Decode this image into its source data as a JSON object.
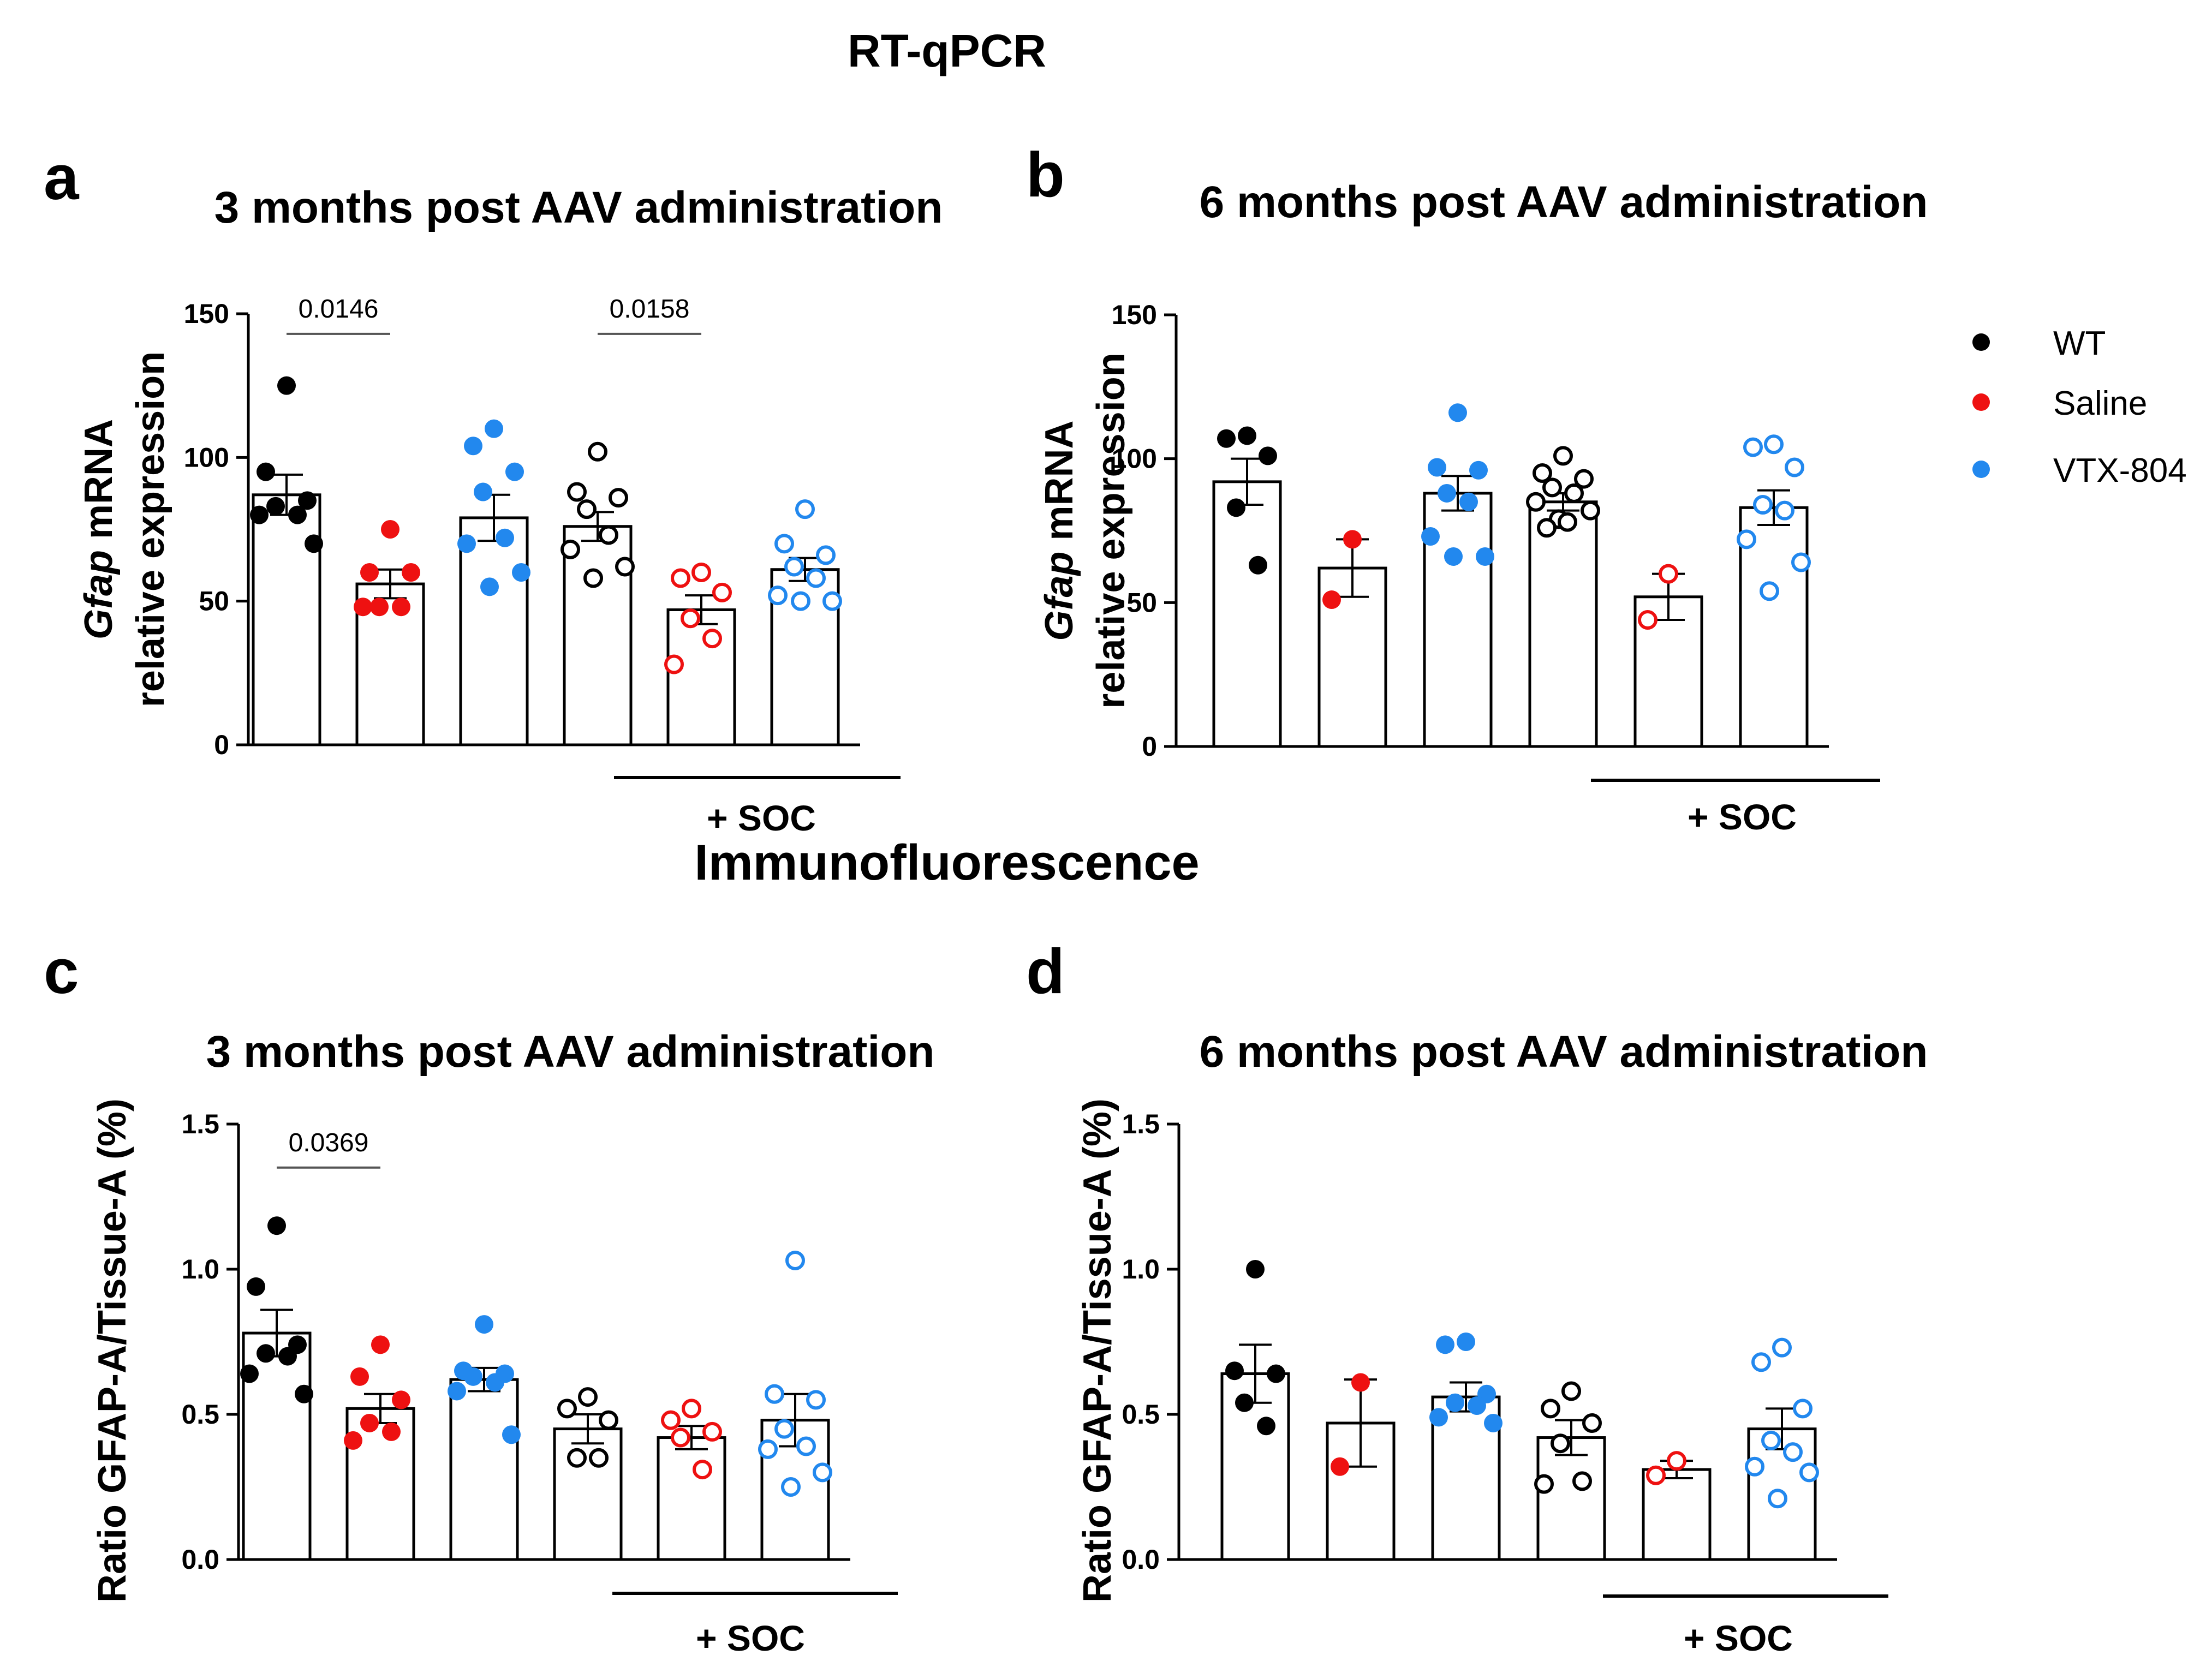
{
  "figure": {
    "section_top": "RT-qPCR",
    "section_bottom": "Immunofluorescence",
    "legend": [
      {
        "label": "WT",
        "color": "#000000"
      },
      {
        "label": "Saline",
        "color": "#ee1111"
      },
      {
        "label": "VTX-804",
        "color": "#2288ee"
      }
    ],
    "soc_label": "+ SOC"
  },
  "chart_data": [
    {
      "panel": "a",
      "type": "bar",
      "title": "3 months post AAV administration",
      "ylabel_italic": "Gfap",
      "ylabel_rest": " mRNA",
      "ylabel_line2": "relative expression",
      "ylim": [
        0,
        150
      ],
      "yticks": [
        "0",
        "50",
        "100",
        "150"
      ],
      "groups": [
        {
          "group": "WT",
          "soc": false,
          "filled": true,
          "mean": 87,
          "sem": 7,
          "points": [
            125,
            95,
            85,
            83,
            80,
            80,
            70
          ]
        },
        {
          "group": "Saline",
          "soc": false,
          "filled": true,
          "mean": 56,
          "sem": 5,
          "points": [
            75,
            60,
            60,
            48,
            48,
            48
          ]
        },
        {
          "group": "VTX-804",
          "soc": false,
          "filled": true,
          "mean": 79,
          "sem": 8,
          "points": [
            110,
            104,
            95,
            88,
            72,
            70,
            60,
            55
          ]
        },
        {
          "group": "WT",
          "soc": true,
          "filled": false,
          "mean": 76,
          "sem": 5,
          "points": [
            102,
            88,
            86,
            82,
            73,
            68,
            62,
            58
          ]
        },
        {
          "group": "Saline",
          "soc": true,
          "filled": false,
          "mean": 47,
          "sem": 5,
          "points": [
            60,
            58,
            53,
            44,
            37,
            28
          ]
        },
        {
          "group": "VTX-804",
          "soc": true,
          "filled": false,
          "mean": 61,
          "sem": 4,
          "points": [
            82,
            70,
            66,
            62,
            58,
            52,
            50,
            50
          ]
        }
      ],
      "significance": [
        {
          "from": 0,
          "to": 1,
          "label": "0.0146",
          "y": 143
        },
        {
          "from": 3,
          "to": 4,
          "label": "0.0158",
          "y": 143
        }
      ]
    },
    {
      "panel": "b",
      "type": "bar",
      "title": "6 months post AAV administration",
      "ylabel_italic": "Gfap",
      "ylabel_rest": " mRNA",
      "ylabel_line2": "relative expression",
      "ylim": [
        0,
        150
      ],
      "yticks": [
        "0",
        "50",
        "100",
        "150"
      ],
      "groups": [
        {
          "group": "WT",
          "soc": false,
          "filled": true,
          "mean": 92,
          "sem": 8,
          "points": [
            108,
            107,
            101,
            83,
            63
          ]
        },
        {
          "group": "Saline",
          "soc": false,
          "filled": true,
          "mean": 62,
          "sem": 10,
          "points": [
            72,
            51
          ]
        },
        {
          "group": "VTX-804",
          "soc": false,
          "filled": true,
          "mean": 88,
          "sem": 6,
          "points": [
            116,
            97,
            96,
            88,
            85,
            73,
            66,
            66
          ]
        },
        {
          "group": "WT",
          "soc": true,
          "filled": false,
          "mean": 85,
          "sem": 3,
          "points": [
            101,
            95,
            93,
            90,
            88,
            85,
            82,
            79,
            78,
            76
          ]
        },
        {
          "group": "Saline",
          "soc": true,
          "filled": false,
          "mean": 52,
          "sem": 8,
          "points": [
            60,
            44
          ]
        },
        {
          "group": "VTX-804",
          "soc": true,
          "filled": false,
          "mean": 83,
          "sem": 6,
          "points": [
            105,
            104,
            97,
            84,
            82,
            72,
            64,
            54
          ]
        }
      ],
      "significance": []
    },
    {
      "panel": "c",
      "type": "bar",
      "title": "3 months post AAV administration",
      "ylabel": "Ratio GFAP-A/Tissue-A (%)",
      "ylim": [
        0,
        1.5
      ],
      "yticks": [
        "0.0",
        "0.5",
        "1.0",
        "1.5"
      ],
      "groups": [
        {
          "group": "WT",
          "soc": false,
          "filled": true,
          "mean": 0.78,
          "sem": 0.08,
          "points": [
            1.15,
            0.94,
            0.74,
            0.71,
            0.7,
            0.64,
            0.57
          ]
        },
        {
          "group": "Saline",
          "soc": false,
          "filled": true,
          "mean": 0.52,
          "sem": 0.05,
          "points": [
            0.74,
            0.63,
            0.55,
            0.47,
            0.44,
            0.41
          ]
        },
        {
          "group": "VTX-804",
          "soc": false,
          "filled": true,
          "mean": 0.62,
          "sem": 0.04,
          "points": [
            0.81,
            0.65,
            0.64,
            0.63,
            0.61,
            0.58,
            0.43
          ]
        },
        {
          "group": "WT",
          "soc": true,
          "filled": false,
          "mean": 0.45,
          "sem": 0.05,
          "points": [
            0.56,
            0.52,
            0.48,
            0.35,
            0.35
          ]
        },
        {
          "group": "Saline",
          "soc": true,
          "filled": false,
          "mean": 0.42,
          "sem": 0.04,
          "points": [
            0.52,
            0.48,
            0.44,
            0.42,
            0.31
          ]
        },
        {
          "group": "VTX-804",
          "soc": true,
          "filled": false,
          "mean": 0.48,
          "sem": 0.09,
          "points": [
            1.03,
            0.57,
            0.55,
            0.45,
            0.39,
            0.38,
            0.3,
            0.25
          ]
        }
      ],
      "significance": [
        {
          "from": 0,
          "to": 1,
          "label": "0.0369",
          "y": 1.35
        }
      ]
    },
    {
      "panel": "d",
      "type": "bar",
      "title": "6 months post AAV administration",
      "ylabel": "Ratio GFAP-A/Tissue-A (%)",
      "ylim": [
        0,
        1.5
      ],
      "yticks": [
        "0.0",
        "0.5",
        "1.0",
        "1.5"
      ],
      "groups": [
        {
          "group": "WT",
          "soc": false,
          "filled": true,
          "mean": 0.64,
          "sem": 0.1,
          "points": [
            1.0,
            0.65,
            0.64,
            0.54,
            0.46
          ]
        },
        {
          "group": "Saline",
          "soc": false,
          "filled": true,
          "mean": 0.47,
          "sem": 0.15,
          "points": [
            0.61,
            0.32
          ]
        },
        {
          "group": "VTX-804",
          "soc": false,
          "filled": true,
          "mean": 0.56,
          "sem": 0.05,
          "points": [
            0.75,
            0.74,
            0.57,
            0.54,
            0.53,
            0.49,
            0.47
          ]
        },
        {
          "group": "WT",
          "soc": true,
          "filled": false,
          "mean": 0.42,
          "sem": 0.06,
          "points": [
            0.58,
            0.52,
            0.47,
            0.4,
            0.27,
            0.26
          ]
        },
        {
          "group": "Saline",
          "soc": true,
          "filled": false,
          "mean": 0.31,
          "sem": 0.03,
          "points": [
            0.34,
            0.29
          ]
        },
        {
          "group": "VTX-804",
          "soc": true,
          "filled": false,
          "mean": 0.45,
          "sem": 0.07,
          "points": [
            0.73,
            0.68,
            0.52,
            0.41,
            0.37,
            0.32,
            0.3,
            0.21
          ]
        }
      ],
      "significance": []
    }
  ]
}
